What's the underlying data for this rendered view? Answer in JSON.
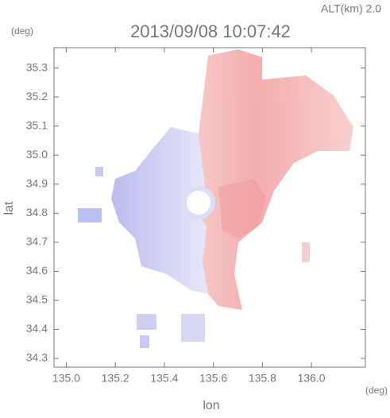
{
  "chart_data": {
    "type": "map",
    "title": "2013/09/08 10:07:42",
    "subtitle": "ALT(km) 2.0",
    "x_label": "lon",
    "y_label": "lat",
    "x_unit": "(deg)",
    "y_unit": "(deg)",
    "xlim": [
      134.95,
      136.22
    ],
    "ylim": [
      34.27,
      35.37
    ],
    "xticks": [
      {
        "value": 135,
        "label": "135.0"
      },
      135.2,
      135.4,
      135.6,
      135.8,
      {
        "value": 136,
        "label": "136.0"
      }
    ],
    "yticks": [
      34.3,
      34.4,
      34.5,
      34.6,
      34.7,
      34.8,
      34.9,
      {
        "value": 35,
        "label": "35.0"
      },
      35.1,
      35.2,
      35.3
    ]
  }
}
